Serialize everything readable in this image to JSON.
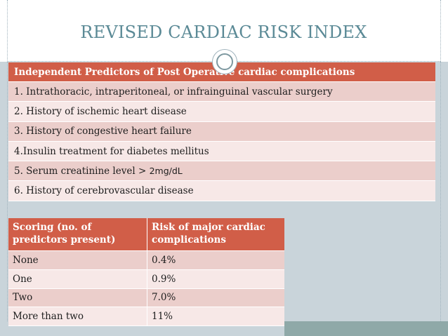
{
  "slide": {
    "title": "REVISED CARDIAC RISK INDEX"
  },
  "predictors_table": {
    "header": "Independent Predictors of Post Operative cardiac complications",
    "rows": [
      "1. Intrathoracic, intraperitoneal, or infrainguinal vascular surgery",
      "2. History of ischemic heart disease",
      "3. History of congestive heart failure",
      "4.Insulin treatment for diabetes mellitus",
      "6. History of cerebrovascular disease"
    ],
    "creatinine_row": {
      "prefix": "5. Serum creatinine level > ",
      "value": "2mg/dL"
    }
  },
  "scoring_table": {
    "headers": [
      "Scoring (no. of predictors present)",
      "Risk of  major cardiac complications"
    ],
    "rows": [
      {
        "predictors": "None",
        "risk": "0.4%"
      },
      {
        "predictors": "One",
        "risk": "0.9%"
      },
      {
        "predictors": "Two",
        "risk": "7.0%"
      },
      {
        "predictors": "More than two",
        "risk": "11%"
      }
    ]
  },
  "colors": {
    "title": "#5b8a96",
    "header_fill": "#d15e48",
    "row_dark": "#ebcecb",
    "row_light": "#f7e8e7",
    "background_panel": "#c9d4da",
    "bottom_band": "#8fa9a8"
  }
}
